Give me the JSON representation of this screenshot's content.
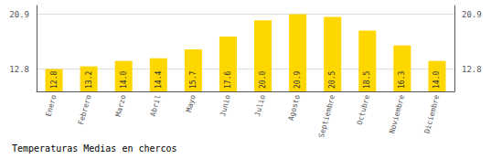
{
  "chart_data": {
    "type": "bar",
    "title": "Temperaturas Medias en chercos",
    "categories": [
      "Enero",
      "Febrero",
      "Marzo",
      "Abril",
      "Mayo",
      "Junio",
      "Julio",
      "Agosto",
      "Septiembre",
      "Octubre",
      "Noviembre",
      "Diciembre"
    ],
    "values": [
      12.8,
      13.2,
      14.0,
      14.4,
      15.7,
      17.6,
      20.0,
      20.9,
      20.5,
      18.5,
      16.3,
      14.0
    ],
    "value_labels": [
      "12.8",
      "13.2",
      "14.0",
      "14.4",
      "15.7",
      "17.6",
      "20.0",
      "20.9",
      "20.5",
      "18.5",
      "16.3",
      "14.0"
    ],
    "color": "#FFD700",
    "ylim": [
      9.5,
      22.2
    ],
    "yticks": [
      12.8,
      20.9
    ],
    "grid": true,
    "data_labels": true
  }
}
